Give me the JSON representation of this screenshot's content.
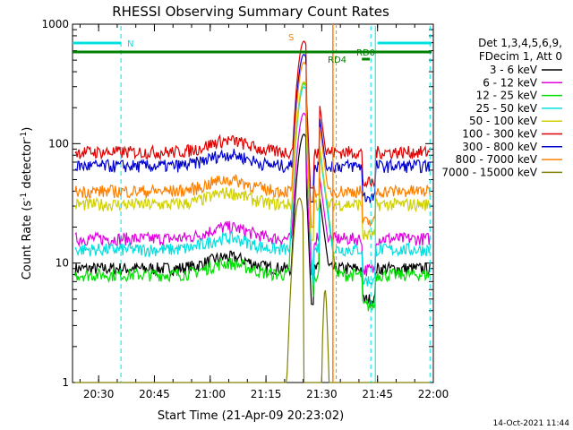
{
  "chart_data": {
    "type": "line",
    "title": "RHESSI Observing Summary Count Rates",
    "xlabel": "Start Time (21-Apr-09 20:23:02)",
    "ylabel": "Count Rate (s⁻¹ detector⁻¹)",
    "ylabel_parts": [
      "Count Rate (s",
      "-1",
      " detector",
      "-1",
      ")"
    ],
    "y_scale": "log",
    "ylim": [
      1,
      1000
    ],
    "xlim_minutes": [
      20.383,
      22.0
    ],
    "x_ticks": [
      {
        "label": "20:30",
        "t": 20.5
      },
      {
        "label": "20:45",
        "t": 20.75
      },
      {
        "label": "21:00",
        "t": 21.0
      },
      {
        "label": "21:15",
        "t": 21.25
      },
      {
        "label": "21:30",
        "t": 21.5
      },
      {
        "label": "21:45",
        "t": 21.75
      },
      {
        "label": "22:00",
        "t": 22.0
      }
    ],
    "y_ticks": [
      {
        "label": "1",
        "v": 1
      },
      {
        "label": "10",
        "v": 10
      },
      {
        "label": "100",
        "v": 100
      },
      {
        "label": "1000",
        "v": 1000
      }
    ],
    "grid": false,
    "legend_position": "right",
    "legend_header": [
      "Det 1,3,4,5,6,9,",
      "FDecim 1, Att 0"
    ],
    "footer_date": "14-Oct-2021 11:44",
    "series": [
      {
        "name": "3 - 6 keV",
        "color": "#000000",
        "base": 9.0,
        "peak": 120
      },
      {
        "name": "6 - 12 keV",
        "color": "#e000e0",
        "base": 16.0,
        "peak": 180
      },
      {
        "name": "12 - 25 keV",
        "color": "#00e000",
        "base": 8.0,
        "peak": 320
      },
      {
        "name": "25 - 50 keV",
        "color": "#00e0e0",
        "base": 13.0,
        "peak": 300
      },
      {
        "name": "50 - 100 keV",
        "color": "#d0d000",
        "base": 31.0,
        "peak": 330
      },
      {
        "name": "100 - 300 keV",
        "color": "#e00000",
        "base": 85.0,
        "peak": 720
      },
      {
        "name": "300 - 800 keV",
        "color": "#0000d0",
        "base": 65.0,
        "peak": 560
      },
      {
        "name": "800 - 7000 keV",
        "color": "#ff8000",
        "base": 40.0,
        "peak": 480
      },
      {
        "name": "7000 - 15000 keV",
        "color": "#808000",
        "base": 1.0,
        "peak": 35
      }
    ],
    "annotations": [
      {
        "text": "N",
        "color": "#00e0e0"
      },
      {
        "text": "S",
        "color": "#ff8000"
      },
      {
        "text": "RD0",
        "color": "#008000"
      },
      {
        "text": "RD4",
        "color": "#008000"
      }
    ],
    "colors": {
      "frame": "#000000",
      "night": "#00e0e0",
      "saa": "#ff8000",
      "decimation": "#008000"
    }
  }
}
